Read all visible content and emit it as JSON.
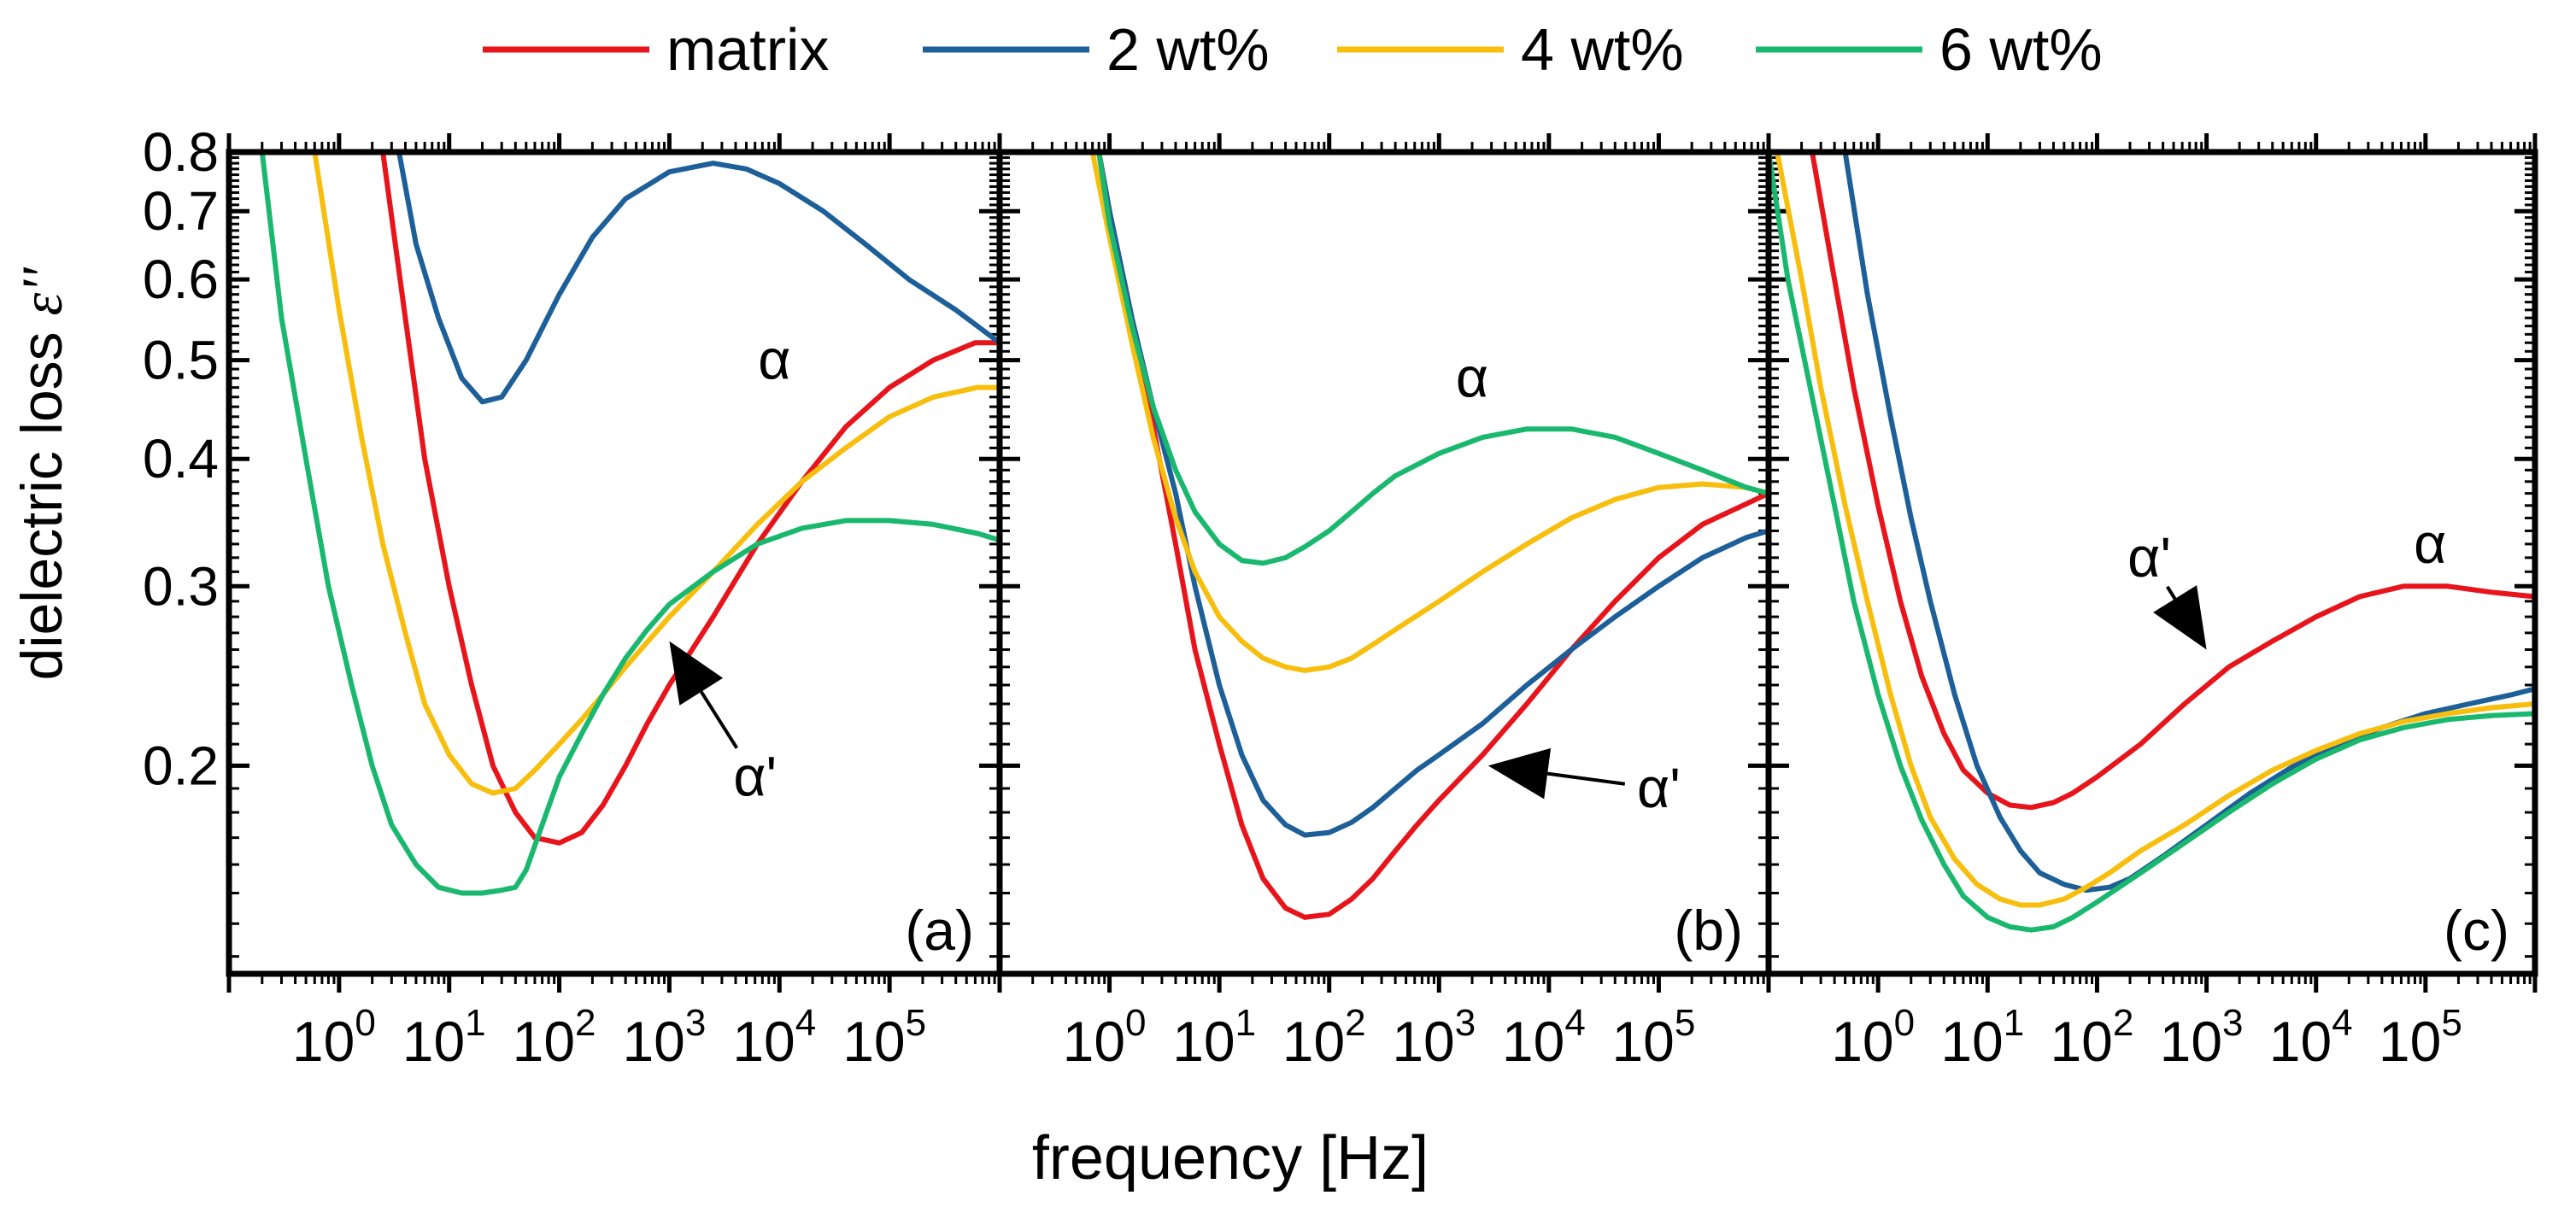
{
  "legend": [
    {
      "label": "matrix",
      "color": "#e8141b"
    },
    {
      "label": "2 wt%",
      "color": "#1d5f98"
    },
    {
      "label": "4 wt%",
      "color": "#f7be0d"
    },
    {
      "label": "6 wt%",
      "color": "#19b86e"
    }
  ],
  "axes": {
    "ylabel_prefix": "dielectric loss ",
    "ylabel_symbol": "ε''",
    "xlabel": "frequency [Hz]",
    "x_tick_base": "10",
    "x_tick_exponents": [
      "0",
      "1",
      "2",
      "3",
      "4",
      "5"
    ],
    "y_tick_labels": [
      "0.2",
      "0.3",
      "0.4",
      "0.5",
      "0.6",
      "0.7",
      "0.8"
    ]
  },
  "chart_data": [
    {
      "type": "line",
      "panel": "(a)",
      "xscale": "log",
      "yscale": "log",
      "xlim": [
        0.1,
        1000000
      ],
      "ylim": [
        0.125,
        0.8
      ],
      "xlabel": "frequency [Hz]",
      "ylabel": "dielectric loss ε''",
      "annotations": [
        {
          "text": "α",
          "x": 9000,
          "y": 0.5
        },
        {
          "text": "α'",
          "x": 6000,
          "y": 0.195,
          "arrow_to": [
            1000,
            0.265
          ]
        }
      ],
      "series": [
        {
          "name": "matrix",
          "x": [
            2.5,
            4,
            6,
            10,
            16,
            25,
            40,
            60,
            100,
            160,
            250,
            400,
            630,
            1000,
            2500,
            6300,
            16000,
            40000,
            100000,
            250000,
            600000,
            1000000
          ],
          "y": [
            0.8,
            0.55,
            0.4,
            0.3,
            0.24,
            0.2,
            0.18,
            0.17,
            0.168,
            0.172,
            0.183,
            0.2,
            0.22,
            0.24,
            0.28,
            0.33,
            0.38,
            0.43,
            0.47,
            0.5,
            0.52,
            0.52
          ]
        },
        {
          "name": "2 wt%",
          "x": [
            3.5,
            5,
            8,
            13,
            20,
            30,
            50,
            100,
            200,
            400,
            1000,
            2500,
            5000,
            10000,
            25000,
            60000,
            150000,
            400000,
            1000000
          ],
          "y": [
            0.8,
            0.65,
            0.55,
            0.48,
            0.455,
            0.46,
            0.5,
            0.58,
            0.66,
            0.72,
            0.765,
            0.78,
            0.77,
            0.745,
            0.7,
            0.65,
            0.6,
            0.56,
            0.52
          ]
        },
        {
          "name": "4 wt%",
          "x": [
            0.6,
            1,
            1.6,
            2.5,
            4,
            6,
            10,
            16,
            25,
            40,
            60,
            100,
            160,
            250,
            400,
            1000,
            2500,
            6300,
            16000,
            40000,
            100000,
            250000,
            630000,
            1000000
          ],
          "y": [
            0.8,
            0.56,
            0.42,
            0.33,
            0.27,
            0.23,
            0.205,
            0.192,
            0.188,
            0.19,
            0.198,
            0.21,
            0.222,
            0.235,
            0.25,
            0.28,
            0.31,
            0.345,
            0.38,
            0.41,
            0.44,
            0.46,
            0.47,
            0.47
          ]
        },
        {
          "name": "6 wt%",
          "x": [
            0.2,
            0.3,
            0.5,
            0.8,
            1.3,
            2,
            3,
            5,
            8,
            13,
            20,
            30,
            40,
            50,
            70,
            100,
            160,
            250,
            400,
            630,
            1000,
            2500,
            6300,
            16000,
            40000,
            100000,
            250000,
            630000,
            1000000
          ],
          "y": [
            0.8,
            0.55,
            0.4,
            0.3,
            0.24,
            0.2,
            0.175,
            0.16,
            0.152,
            0.15,
            0.15,
            0.151,
            0.152,
            0.158,
            0.175,
            0.195,
            0.215,
            0.235,
            0.255,
            0.272,
            0.288,
            0.31,
            0.33,
            0.342,
            0.348,
            0.348,
            0.345,
            0.338,
            0.333
          ]
        }
      ]
    },
    {
      "type": "line",
      "panel": "(b)",
      "xscale": "log",
      "yscale": "log",
      "xlim": [
        0.1,
        1000000
      ],
      "ylim": [
        0.125,
        0.8
      ],
      "xlabel": "frequency [Hz]",
      "ylabel": "dielectric loss ε''",
      "annotations": [
        {
          "text": "α",
          "x": 2000,
          "y": 0.48
        },
        {
          "text": "α'",
          "x": 100000,
          "y": 0.19,
          "arrow_to": [
            2800,
            0.2
          ]
        }
      ],
      "series": [
        {
          "name": "matrix",
          "x": [
            0.8,
            1,
            1.6,
            2.5,
            4,
            6,
            10,
            16,
            25,
            40,
            60,
            100,
            160,
            250,
            400,
            630,
            1000,
            2500,
            6300,
            16000,
            40000,
            100000,
            250000,
            1000000
          ],
          "y": [
            0.8,
            0.7,
            0.55,
            0.43,
            0.33,
            0.26,
            0.21,
            0.175,
            0.155,
            0.145,
            0.142,
            0.143,
            0.148,
            0.155,
            0.165,
            0.175,
            0.185,
            0.205,
            0.23,
            0.26,
            0.29,
            0.32,
            0.345,
            0.37
          ]
        },
        {
          "name": "2 wt%",
          "x": [
            0.8,
            1,
            1.6,
            2.5,
            4,
            6,
            10,
            16,
            25,
            40,
            60,
            100,
            160,
            250,
            400,
            630,
            1000,
            2500,
            6300,
            16000,
            40000,
            100000,
            250000,
            630000,
            1000000
          ],
          "y": [
            0.8,
            0.7,
            0.55,
            0.45,
            0.37,
            0.3,
            0.24,
            0.205,
            0.185,
            0.175,
            0.171,
            0.172,
            0.176,
            0.182,
            0.19,
            0.198,
            0.205,
            0.22,
            0.24,
            0.26,
            0.28,
            0.3,
            0.32,
            0.335,
            0.34
          ]
        },
        {
          "name": "4 wt%",
          "x": [
            0.7,
            1,
            1.6,
            2.5,
            4,
            6,
            10,
            16,
            25,
            40,
            60,
            100,
            160,
            250,
            400,
            1000,
            2500,
            6300,
            16000,
            40000,
            100000,
            250000,
            630000,
            1000000
          ],
          "y": [
            0.8,
            0.66,
            0.52,
            0.42,
            0.35,
            0.31,
            0.28,
            0.265,
            0.255,
            0.25,
            0.248,
            0.25,
            0.255,
            0.263,
            0.272,
            0.29,
            0.31,
            0.33,
            0.35,
            0.365,
            0.375,
            0.378,
            0.375,
            0.37
          ]
        },
        {
          "name": "6 wt%",
          "x": [
            0.8,
            1,
            1.6,
            2.5,
            4,
            6,
            10,
            16,
            25,
            40,
            60,
            100,
            160,
            250,
            400,
            1000,
            2500,
            6300,
            16000,
            40000,
            100000,
            250000,
            630000,
            1000000
          ],
          "y": [
            0.8,
            0.68,
            0.54,
            0.45,
            0.39,
            0.355,
            0.33,
            0.318,
            0.316,
            0.32,
            0.328,
            0.34,
            0.355,
            0.37,
            0.385,
            0.405,
            0.42,
            0.428,
            0.428,
            0.42,
            0.405,
            0.39,
            0.375,
            0.37
          ]
        }
      ]
    },
    {
      "type": "line",
      "panel": "(c)",
      "xscale": "log",
      "yscale": "log",
      "xlim": [
        0.1,
        1000000
      ],
      "ylim": [
        0.125,
        0.8
      ],
      "xlabel": "frequency [Hz]",
      "ylabel": "dielectric loss ε''",
      "annotations": [
        {
          "text": "α",
          "x": 110000,
          "y": 0.33
        },
        {
          "text": "α'",
          "x": 300,
          "y": 0.32,
          "arrow_to": [
            1000,
            0.26
          ]
        }
      ],
      "series": [
        {
          "name": "matrix",
          "x": [
            0.25,
            0.4,
            0.6,
            1,
            1.6,
            2.5,
            4,
            6,
            10,
            16,
            25,
            40,
            60,
            100,
            250,
            630,
            1600,
            4000,
            10000,
            25000,
            63000,
            160000,
            400000,
            1000000
          ],
          "y": [
            0.8,
            0.6,
            0.47,
            0.36,
            0.29,
            0.245,
            0.215,
            0.198,
            0.188,
            0.183,
            0.182,
            0.184,
            0.188,
            0.195,
            0.21,
            0.23,
            0.25,
            0.265,
            0.28,
            0.293,
            0.3,
            0.3,
            0.296,
            0.293
          ]
        },
        {
          "name": "2 wt%",
          "x": [
            0.5,
            0.8,
            1.3,
            2,
            3,
            5,
            8,
            13,
            20,
            30,
            50,
            80,
            130,
            200,
            400,
            1000,
            2500,
            6300,
            16000,
            40000,
            100000,
            250000,
            630000,
            1000000
          ],
          "y": [
            0.8,
            0.58,
            0.44,
            0.35,
            0.29,
            0.235,
            0.2,
            0.178,
            0.165,
            0.157,
            0.153,
            0.151,
            0.152,
            0.155,
            0.163,
            0.175,
            0.188,
            0.2,
            0.21,
            0.218,
            0.225,
            0.23,
            0.235,
            0.238
          ]
        },
        {
          "name": "4 wt%",
          "x": [
            0.12,
            0.2,
            0.3,
            0.5,
            0.8,
            1.3,
            2,
            3,
            5,
            8,
            13,
            20,
            30,
            50,
            80,
            130,
            250,
            630,
            1600,
            4000,
            10000,
            25000,
            63000,
            160000,
            400000,
            1000000
          ],
          "y": [
            0.8,
            0.6,
            0.47,
            0.36,
            0.29,
            0.235,
            0.2,
            0.178,
            0.162,
            0.153,
            0.148,
            0.146,
            0.146,
            0.148,
            0.152,
            0.157,
            0.165,
            0.175,
            0.187,
            0.198,
            0.207,
            0.215,
            0.221,
            0.225,
            0.228,
            0.23
          ]
        },
        {
          "name": "6 wt%",
          "x": [
            0.1,
            0.15,
            0.25,
            0.4,
            0.6,
            1,
            1.6,
            2.5,
            4,
            6,
            10,
            16,
            25,
            40,
            60,
            100,
            250,
            630,
            1600,
            4000,
            10000,
            25000,
            63000,
            160000,
            400000,
            1000000
          ],
          "y": [
            0.8,
            0.6,
            0.46,
            0.36,
            0.29,
            0.235,
            0.2,
            0.177,
            0.16,
            0.149,
            0.142,
            0.139,
            0.138,
            0.139,
            0.142,
            0.147,
            0.157,
            0.168,
            0.18,
            0.192,
            0.203,
            0.212,
            0.218,
            0.222,
            0.224,
            0.225
          ]
        }
      ]
    }
  ]
}
